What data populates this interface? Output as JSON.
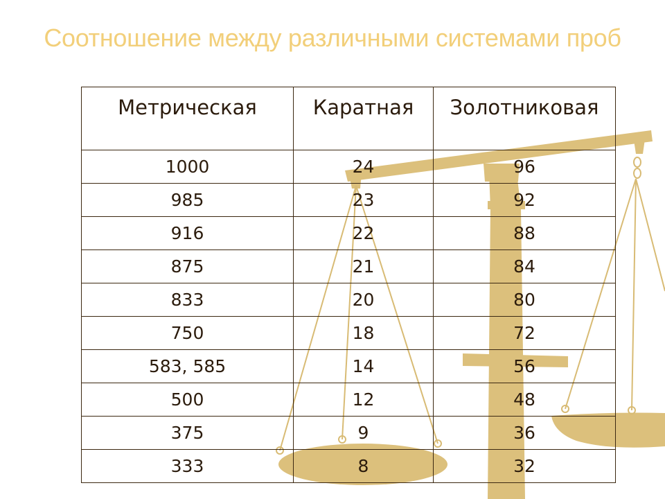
{
  "slide": {
    "title": "Соотношение между различными системами проб"
  },
  "table": {
    "headers": [
      "Метрическая",
      "Каратная",
      "Золотниковая"
    ],
    "rows": [
      [
        "1000",
        "24",
        "96"
      ],
      [
        "985",
        "23",
        "92"
      ],
      [
        "916",
        "22",
        "88"
      ],
      [
        "875",
        "21",
        "84"
      ],
      [
        "833",
        "20",
        "80"
      ],
      [
        "750",
        "18",
        "72"
      ],
      [
        "583, 585",
        "14",
        "56"
      ],
      [
        "500",
        "12",
        "48"
      ],
      [
        "375",
        "9",
        "36"
      ],
      [
        "333",
        "8",
        "32"
      ]
    ]
  },
  "decor": {
    "illustration": "balance-scales-icon",
    "scale_color": "#dcc07c",
    "title_color": "#f2cf7a"
  }
}
